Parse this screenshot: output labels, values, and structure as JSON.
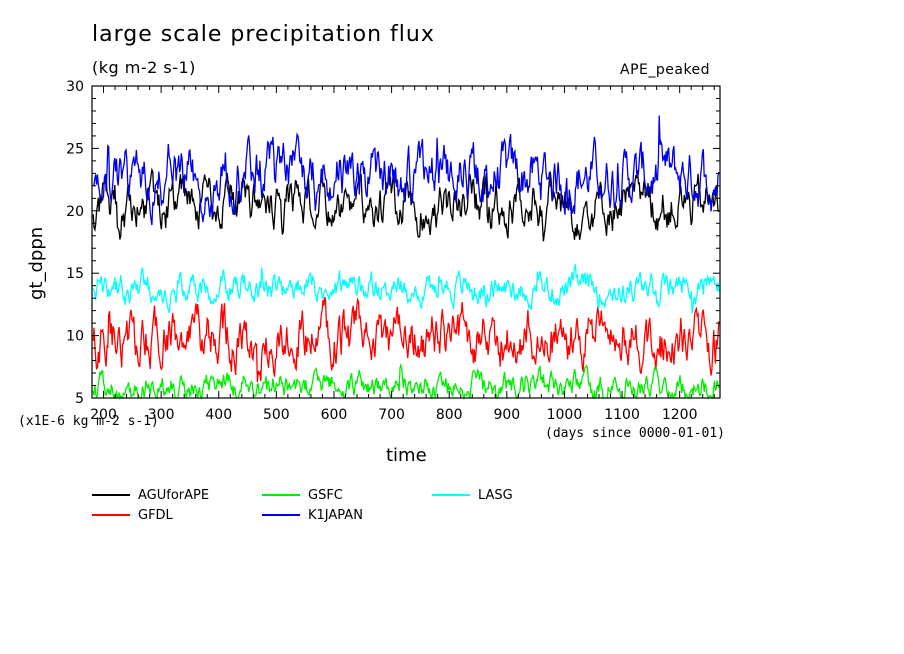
{
  "chart_data": {
    "type": "line",
    "title": "large scale precipitation flux",
    "subtitle": "(kg m-2 s-1)",
    "tag": "APE_peaked",
    "xlabel": "time",
    "ylabel": "gt_dppn",
    "x_unit_note": "(days since 0000-01-01)",
    "y_unit_note": "(x1E-6 kg m-2 s-1)",
    "xlim": [
      180,
      1270
    ],
    "ylim": [
      5,
      30
    ],
    "x_ticks": [
      200,
      300,
      400,
      500,
      600,
      700,
      800,
      900,
      1000,
      1100,
      1200
    ],
    "y_ticks": [
      5,
      10,
      15,
      20,
      25,
      30
    ],
    "grid": false,
    "legend_position": "below",
    "series": [
      {
        "name": "AGUforAPE",
        "color": "#000000",
        "mean": 20.5,
        "amp": 1.6,
        "seed": 11
      },
      {
        "name": "GFDL",
        "color": "#ff0000",
        "mean": 9.8,
        "amp": 1.8,
        "seed": 23
      },
      {
        "name": "GSFC",
        "color": "#00ee00",
        "mean": 6.0,
        "amp": 0.9,
        "seed": 37
      },
      {
        "name": "K1JAPAN",
        "color": "#0000ee",
        "mean": 22.8,
        "amp": 1.9,
        "seed": 41
      },
      {
        "name": "LASG",
        "color": "#00ffff",
        "mean": 13.8,
        "amp": 1.0,
        "seed": 53
      }
    ]
  }
}
